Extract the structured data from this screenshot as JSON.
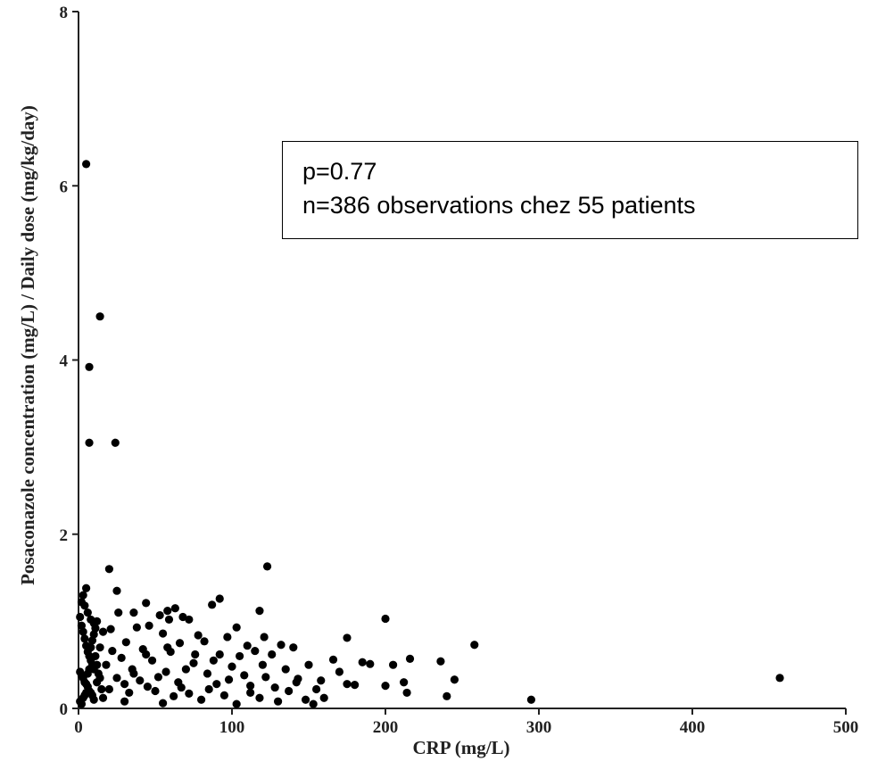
{
  "chart_data": {
    "type": "scatter",
    "title": "",
    "xlabel": "CRP (mg/L)",
    "ylabel": "Posaconazole concentration (mg/L) / Daily dose (mg/kg/day)",
    "xlim": [
      0,
      500
    ],
    "ylim": [
      0,
      8
    ],
    "x_ticks": [
      "0",
      "100",
      "200",
      "300",
      "400",
      "500"
    ],
    "y_ticks": [
      "0",
      "2",
      "4",
      "6",
      "8"
    ],
    "grid": false,
    "annotations": [
      "p=0.77",
      "n=386 observations chez 55 patients"
    ],
    "marker_color": "#000000",
    "points": [
      {
        "x": 5,
        "y": 6.25
      },
      {
        "x": 14,
        "y": 4.5
      },
      {
        "x": 7,
        "y": 3.92
      },
      {
        "x": 7,
        "y": 3.05
      },
      {
        "x": 24,
        "y": 3.05
      },
      {
        "x": 123,
        "y": 1.63
      },
      {
        "x": 20,
        "y": 1.6
      },
      {
        "x": 5,
        "y": 1.38
      },
      {
        "x": 25,
        "y": 1.35
      },
      {
        "x": 3,
        "y": 1.3
      },
      {
        "x": 92,
        "y": 1.26
      },
      {
        "x": 2,
        "y": 1.22
      },
      {
        "x": 44,
        "y": 1.21
      },
      {
        "x": 87,
        "y": 1.19
      },
      {
        "x": 63,
        "y": 1.15
      },
      {
        "x": 58,
        "y": 1.12
      },
      {
        "x": 118,
        "y": 1.12
      },
      {
        "x": 36,
        "y": 1.1
      },
      {
        "x": 26,
        "y": 1.1
      },
      {
        "x": 53,
        "y": 1.07
      },
      {
        "x": 68,
        "y": 1.05
      },
      {
        "x": 59,
        "y": 1.02
      },
      {
        "x": 72,
        "y": 1.02
      },
      {
        "x": 200,
        "y": 1.03
      },
      {
        "x": 10,
        "y": 0.98
      },
      {
        "x": 46,
        "y": 0.95
      },
      {
        "x": 38,
        "y": 0.93
      },
      {
        "x": 21,
        "y": 0.91
      },
      {
        "x": 103,
        "y": 0.93
      },
      {
        "x": 16,
        "y": 0.88
      },
      {
        "x": 55,
        "y": 0.86
      },
      {
        "x": 78,
        "y": 0.84
      },
      {
        "x": 97,
        "y": 0.82
      },
      {
        "x": 121,
        "y": 0.82
      },
      {
        "x": 175,
        "y": 0.81
      },
      {
        "x": 31,
        "y": 0.76
      },
      {
        "x": 66,
        "y": 0.75
      },
      {
        "x": 82,
        "y": 0.77
      },
      {
        "x": 110,
        "y": 0.72
      },
      {
        "x": 132,
        "y": 0.73
      },
      {
        "x": 140,
        "y": 0.7
      },
      {
        "x": 258,
        "y": 0.73
      },
      {
        "x": 14,
        "y": 0.7
      },
      {
        "x": 42,
        "y": 0.68
      },
      {
        "x": 60,
        "y": 0.65
      },
      {
        "x": 115,
        "y": 0.66
      },
      {
        "x": 92,
        "y": 0.62
      },
      {
        "x": 126,
        "y": 0.62
      },
      {
        "x": 166,
        "y": 0.56
      },
      {
        "x": 185,
        "y": 0.53
      },
      {
        "x": 216,
        "y": 0.57
      },
      {
        "x": 236,
        "y": 0.54
      },
      {
        "x": 190,
        "y": 0.51
      },
      {
        "x": 205,
        "y": 0.5
      },
      {
        "x": 150,
        "y": 0.5
      },
      {
        "x": 28,
        "y": 0.58
      },
      {
        "x": 48,
        "y": 0.55
      },
      {
        "x": 75,
        "y": 0.52
      },
      {
        "x": 100,
        "y": 0.48
      },
      {
        "x": 135,
        "y": 0.45
      },
      {
        "x": 170,
        "y": 0.42
      },
      {
        "x": 18,
        "y": 0.5
      },
      {
        "x": 35,
        "y": 0.45
      },
      {
        "x": 57,
        "y": 0.42
      },
      {
        "x": 84,
        "y": 0.4
      },
      {
        "x": 108,
        "y": 0.38
      },
      {
        "x": 122,
        "y": 0.36
      },
      {
        "x": 143,
        "y": 0.34
      },
      {
        "x": 245,
        "y": 0.33
      },
      {
        "x": 457,
        "y": 0.35
      },
      {
        "x": 158,
        "y": 0.32
      },
      {
        "x": 175,
        "y": 0.28
      },
      {
        "x": 200,
        "y": 0.26
      },
      {
        "x": 212,
        "y": 0.3
      },
      {
        "x": 25,
        "y": 0.35
      },
      {
        "x": 40,
        "y": 0.32
      },
      {
        "x": 65,
        "y": 0.3
      },
      {
        "x": 90,
        "y": 0.28
      },
      {
        "x": 112,
        "y": 0.26
      },
      {
        "x": 128,
        "y": 0.24
      },
      {
        "x": 137,
        "y": 0.2
      },
      {
        "x": 155,
        "y": 0.22
      },
      {
        "x": 180,
        "y": 0.27
      },
      {
        "x": 214,
        "y": 0.18
      },
      {
        "x": 240,
        "y": 0.14
      },
      {
        "x": 295,
        "y": 0.1
      },
      {
        "x": 20,
        "y": 0.22
      },
      {
        "x": 33,
        "y": 0.18
      },
      {
        "x": 50,
        "y": 0.2
      },
      {
        "x": 72,
        "y": 0.17
      },
      {
        "x": 95,
        "y": 0.15
      },
      {
        "x": 118,
        "y": 0.12
      },
      {
        "x": 148,
        "y": 0.1
      },
      {
        "x": 160,
        "y": 0.12
      },
      {
        "x": 30,
        "y": 0.08
      },
      {
        "x": 55,
        "y": 0.06
      },
      {
        "x": 80,
        "y": 0.1
      },
      {
        "x": 103,
        "y": 0.05
      },
      {
        "x": 130,
        "y": 0.08
      },
      {
        "x": 153,
        "y": 0.05
      },
      {
        "x": 12,
        "y": 0.3
      },
      {
        "x": 45,
        "y": 0.25
      },
      {
        "x": 62,
        "y": 0.14
      },
      {
        "x": 85,
        "y": 0.22
      },
      {
        "x": 98,
        "y": 0.33
      },
      {
        "x": 36,
        "y": 0.4
      },
      {
        "x": 52,
        "y": 0.36
      },
      {
        "x": 70,
        "y": 0.45
      },
      {
        "x": 88,
        "y": 0.55
      },
      {
        "x": 105,
        "y": 0.6
      },
      {
        "x": 44,
        "y": 0.62
      },
      {
        "x": 22,
        "y": 0.66
      },
      {
        "x": 58,
        "y": 0.7
      },
      {
        "x": 76,
        "y": 0.62
      },
      {
        "x": 120,
        "y": 0.5
      },
      {
        "x": 30,
        "y": 0.28
      },
      {
        "x": 67,
        "y": 0.24
      },
      {
        "x": 112,
        "y": 0.18
      },
      {
        "x": 142,
        "y": 0.3
      },
      {
        "x": 16,
        "y": 0.12
      },
      {
        "x": 1,
        "y": 1.05
      },
      {
        "x": 2,
        "y": 0.95
      },
      {
        "x": 3,
        "y": 0.88
      },
      {
        "x": 4,
        "y": 0.8
      },
      {
        "x": 5,
        "y": 0.72
      },
      {
        "x": 6,
        "y": 0.65
      },
      {
        "x": 7,
        "y": 0.6
      },
      {
        "x": 8,
        "y": 0.55
      },
      {
        "x": 9,
        "y": 0.5
      },
      {
        "x": 10,
        "y": 0.45
      },
      {
        "x": 1,
        "y": 0.42
      },
      {
        "x": 2,
        "y": 0.38
      },
      {
        "x": 3,
        "y": 0.35
      },
      {
        "x": 4,
        "y": 0.3
      },
      {
        "x": 5,
        "y": 0.28
      },
      {
        "x": 6,
        "y": 0.25
      },
      {
        "x": 7,
        "y": 0.2
      },
      {
        "x": 8,
        "y": 0.18
      },
      {
        "x": 9,
        "y": 0.15
      },
      {
        "x": 10,
        "y": 0.1
      },
      {
        "x": 1,
        "y": 0.08
      },
      {
        "x": 2,
        "y": 0.05
      },
      {
        "x": 3,
        "y": 0.12
      },
      {
        "x": 4,
        "y": 0.15
      },
      {
        "x": 5,
        "y": 0.18
      },
      {
        "x": 6,
        "y": 0.4
      },
      {
        "x": 7,
        "y": 0.45
      },
      {
        "x": 8,
        "y": 0.7
      },
      {
        "x": 9,
        "y": 0.78
      },
      {
        "x": 10,
        "y": 0.85
      },
      {
        "x": 11,
        "y": 0.6
      },
      {
        "x": 12,
        "y": 0.5
      },
      {
        "x": 13,
        "y": 0.4
      },
      {
        "x": 14,
        "y": 0.35
      },
      {
        "x": 15,
        "y": 0.22
      },
      {
        "x": 11,
        "y": 0.92
      },
      {
        "x": 12,
        "y": 1.0
      },
      {
        "x": 6,
        "y": 1.1
      },
      {
        "x": 4,
        "y": 1.18
      },
      {
        "x": 8,
        "y": 1.02
      }
    ]
  }
}
